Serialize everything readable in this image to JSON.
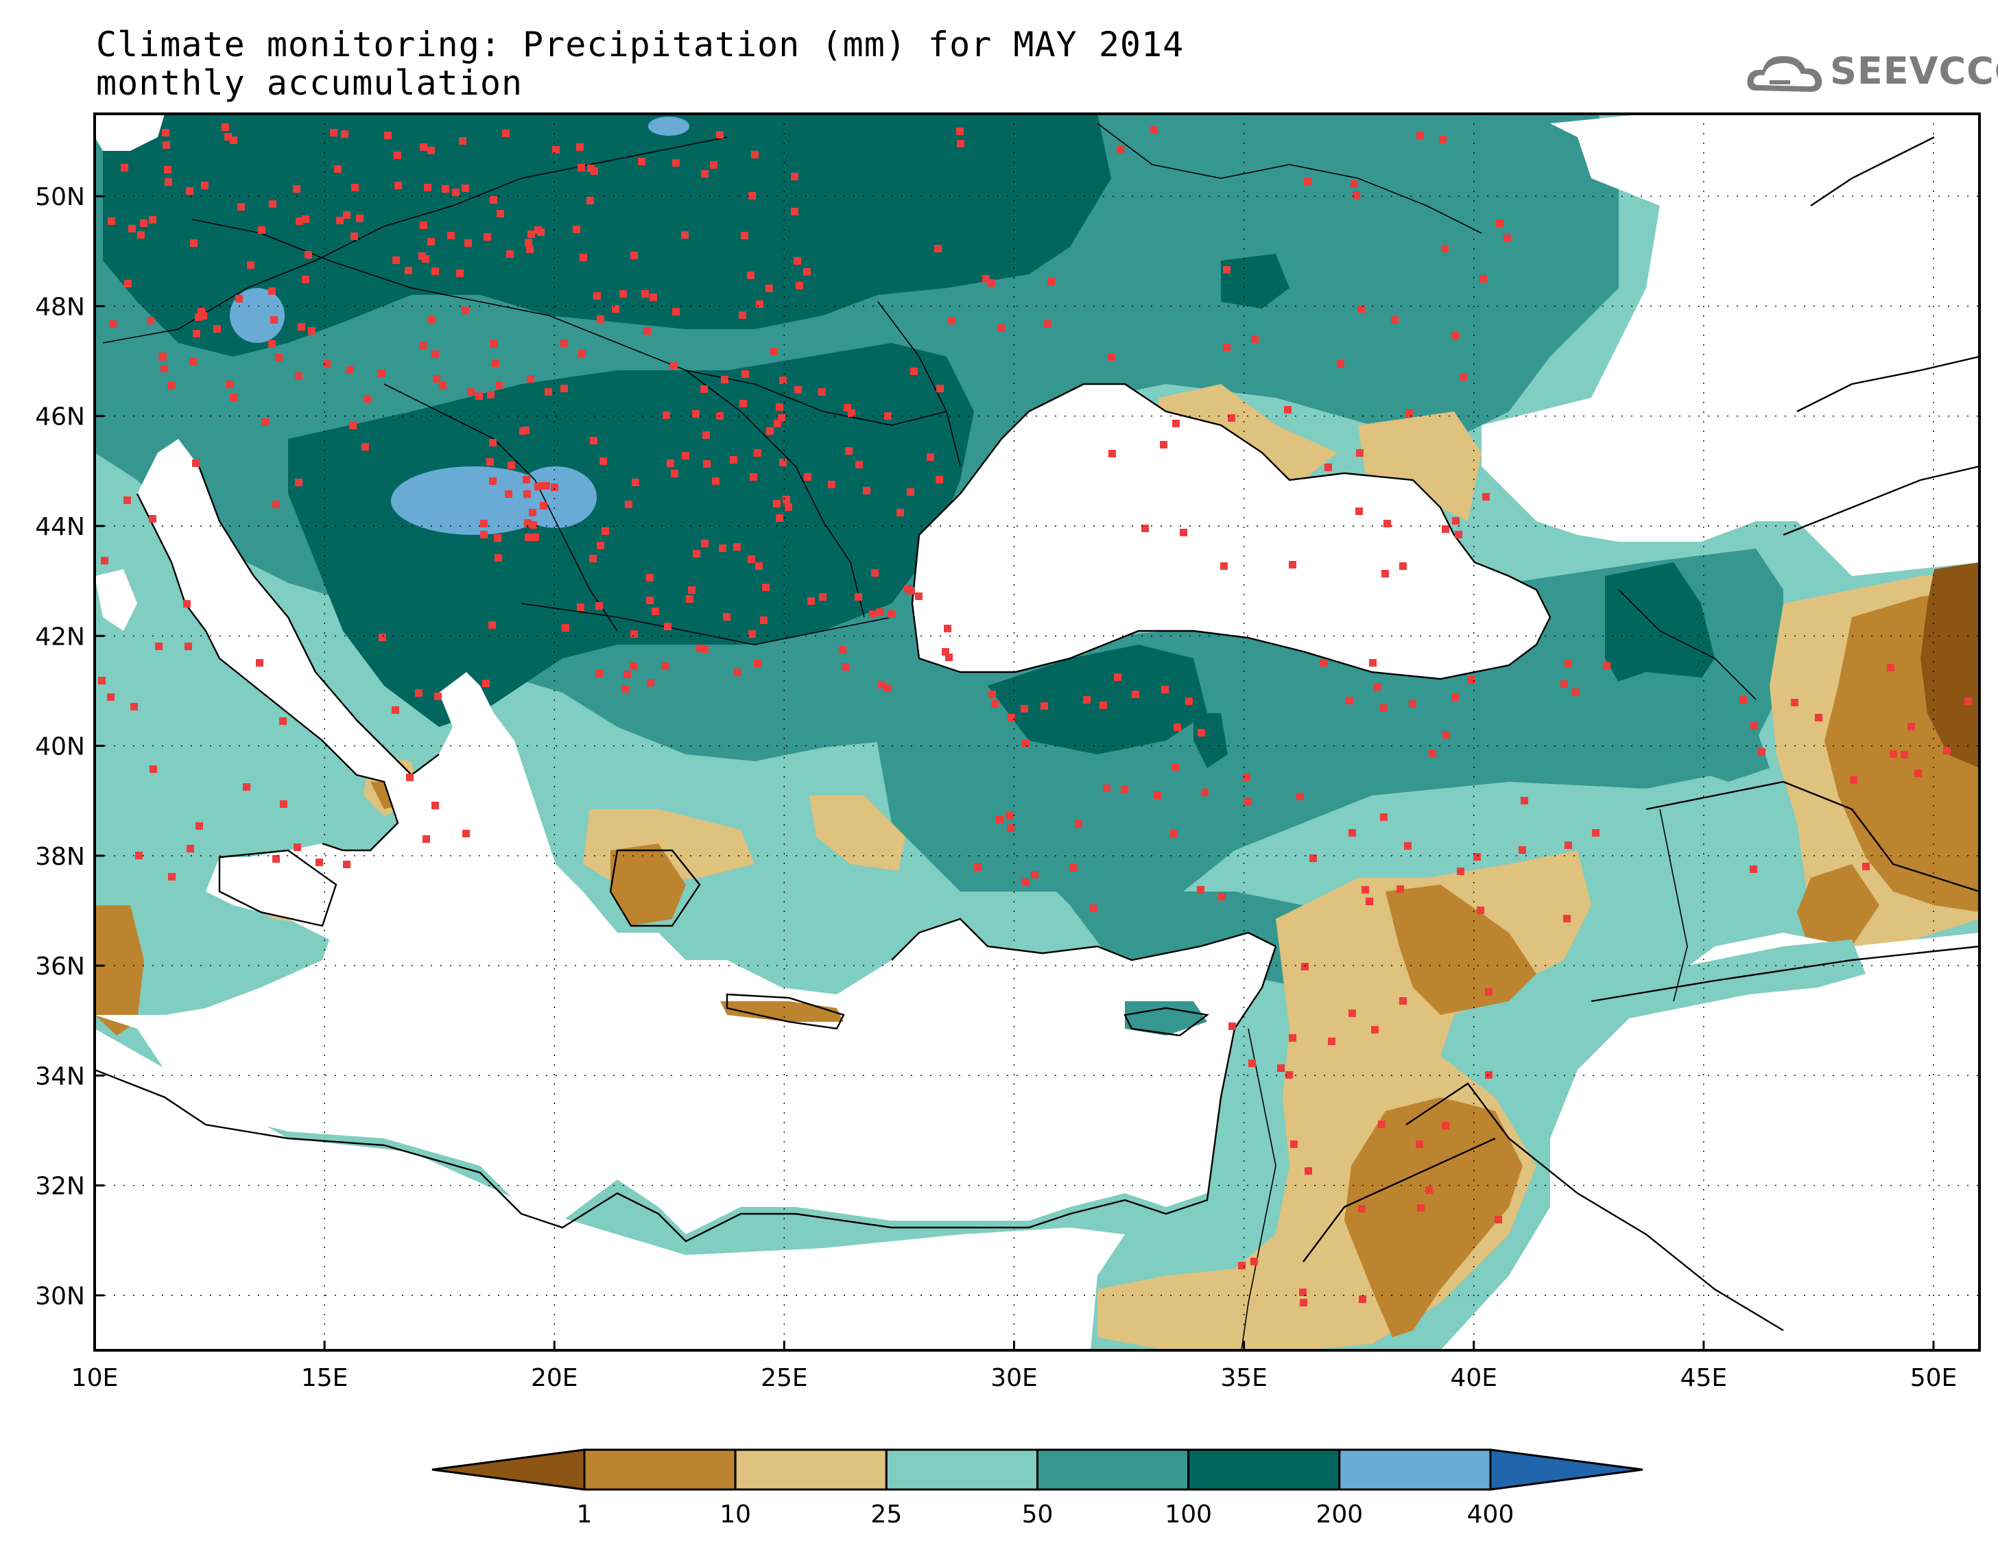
{
  "title": {
    "line1": "Climate monitoring: Precipitation (mm) for MAY 2014",
    "line2": "monthly accumulation"
  },
  "logo": {
    "text": "SEEVCCC",
    "icon": "cloud-icon"
  },
  "map": {
    "lon_range": [
      10,
      51
    ],
    "lat_range": [
      29,
      51.5
    ],
    "x_ticks": [
      "10E",
      "15E",
      "20E",
      "25E",
      "30E",
      "35E",
      "40E",
      "45E",
      "50E"
    ],
    "y_ticks": [
      "30N",
      "32N",
      "34N",
      "36N",
      "38N",
      "40N",
      "42N",
      "44N",
      "46N",
      "48N",
      "50N"
    ],
    "grid": "dotted"
  },
  "colorbar": {
    "unit": "mm",
    "levels": [
      "1",
      "10",
      "25",
      "50",
      "100",
      "200",
      "400"
    ],
    "colors": [
      "#8c5514",
      "#bd842f",
      "#dfc27d",
      "#80cdc1",
      "#35978f",
      "#01665e",
      "#6aabd6",
      "#2166ac"
    ]
  }
}
